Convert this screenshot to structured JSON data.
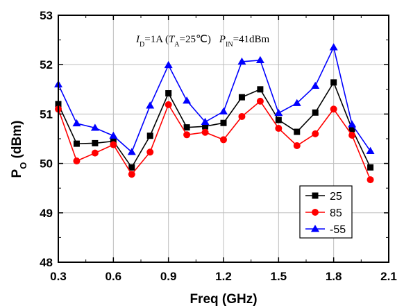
{
  "chart_data": {
    "type": "line",
    "title": "",
    "xlabel": "Freq (GHz)",
    "ylabel_main": "P",
    "ylabel_sub": "O",
    "ylabel_unit": " (dBm)",
    "xlim": [
      0.3,
      2.1
    ],
    "ylim": [
      48,
      53
    ],
    "xticks": [
      0.3,
      0.6,
      0.9,
      1.2,
      1.5,
      1.8,
      2.1
    ],
    "xtick_labels": [
      "0.3",
      "0.6",
      "0.9",
      "1.2",
      "1.5",
      "1.8",
      "2.1"
    ],
    "yticks": [
      48,
      49,
      50,
      51,
      52,
      53
    ],
    "ytick_labels": [
      "48",
      "49",
      "50",
      "51",
      "52",
      "53"
    ],
    "grid": true,
    "legend_position": "bottom-right",
    "annotation": {
      "id_main": "I",
      "id_sub": "D",
      "id_val": "=1A (",
      "ta_main": "T",
      "ta_sub": "A",
      "ta_val": "=25℃)",
      "pin_main": "P",
      "pin_sub": "IN",
      "pin_val": "=41dBm"
    },
    "x": [
      0.3,
      0.4,
      0.5,
      0.6,
      0.7,
      0.8,
      0.9,
      1.0,
      1.1,
      1.2,
      1.3,
      1.4,
      1.5,
      1.6,
      1.7,
      1.8,
      1.9,
      2.0
    ],
    "series": [
      {
        "name": "25",
        "color": "#000000",
        "marker": "square",
        "values": [
          51.2,
          50.4,
          50.41,
          50.45,
          49.92,
          50.56,
          51.42,
          50.73,
          50.75,
          50.82,
          51.34,
          51.5,
          50.88,
          50.64,
          51.03,
          51.64,
          50.7,
          49.92
        ]
      },
      {
        "name": "85",
        "color": "#ff0000",
        "marker": "circle",
        "values": [
          51.1,
          50.05,
          50.21,
          50.38,
          49.78,
          50.23,
          51.19,
          50.58,
          50.63,
          50.48,
          50.95,
          51.26,
          50.71,
          50.36,
          50.6,
          51.1,
          50.57,
          49.67
        ]
      },
      {
        "name": "-55",
        "color": "#0000ff",
        "marker": "triangle",
        "values": [
          51.6,
          50.81,
          50.72,
          50.56,
          50.23,
          51.17,
          51.99,
          51.27,
          50.84,
          51.05,
          52.06,
          52.09,
          51.02,
          51.22,
          51.57,
          52.35,
          50.79,
          50.25
        ]
      }
    ]
  }
}
